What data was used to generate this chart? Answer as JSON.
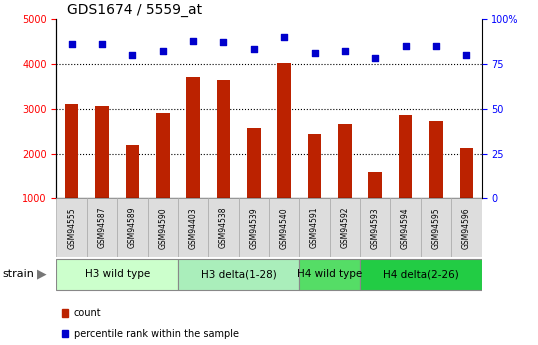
{
  "title": "GDS1674 / 5559_at",
  "samples": [
    "GSM94555",
    "GSM94587",
    "GSM94589",
    "GSM94590",
    "GSM94403",
    "GSM94538",
    "GSM94539",
    "GSM94540",
    "GSM94591",
    "GSM94592",
    "GSM94593",
    "GSM94594",
    "GSM94595",
    "GSM94596"
  ],
  "counts": [
    3100,
    3050,
    2180,
    2900,
    3700,
    3650,
    2580,
    4020,
    2430,
    2660,
    1580,
    2850,
    2720,
    2120
  ],
  "percentiles": [
    86,
    86,
    80,
    82,
    88,
    87,
    83,
    90,
    81,
    82,
    78,
    85,
    85,
    80
  ],
  "groups": [
    {
      "label": "H3 wild type",
      "start": 0,
      "end": 4,
      "color": "#ccffcc"
    },
    {
      "label": "H3 delta(1-28)",
      "start": 4,
      "end": 8,
      "color": "#aaeebb"
    },
    {
      "label": "H4 wild type",
      "start": 8,
      "end": 10,
      "color": "#55dd66"
    },
    {
      "label": "H4 delta(2-26)",
      "start": 10,
      "end": 14,
      "color": "#22cc44"
    }
  ],
  "bar_color": "#bb2200",
  "dot_color": "#0000cc",
  "ylim_left": [
    1000,
    5000
  ],
  "ylim_right": [
    0,
    100
  ],
  "yticks_left": [
    1000,
    2000,
    3000,
    4000,
    5000
  ],
  "yticks_right": [
    0,
    25,
    50,
    75,
    100
  ],
  "grid_values": [
    2000,
    3000,
    4000
  ],
  "bar_width": 0.45,
  "bg_color": "#ffffff",
  "tick_fontsize": 7,
  "title_fontsize": 10,
  "group_fontsize": 7.5,
  "sample_fontsize": 5.5,
  "legend_fontsize": 7
}
